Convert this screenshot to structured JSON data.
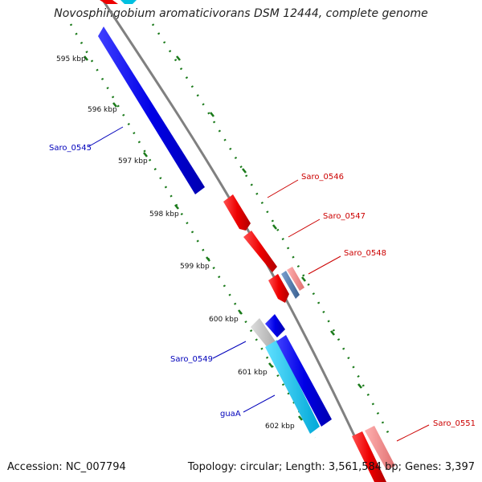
{
  "title": "Novosphingobium aromaticivorans DSM 12444, complete genome",
  "footer": {
    "accession": "Accession: NC_007794",
    "summary": "Topology: circular; Length: 3,561,584 bp; Genes: 3,397"
  },
  "ticks": [
    "595 kbp",
    "596 kbp",
    "597 kbp",
    "598 kbp",
    "599 kbp",
    "600 kbp",
    "601 kbp",
    "602 kbp"
  ],
  "genes": [
    {
      "name": "Saro_0545",
      "strand": "minus",
      "color": "#0000ee"
    },
    {
      "name": "Saro_0546",
      "strand": "plus",
      "color": "#ee0000"
    },
    {
      "name": "Saro_0547",
      "strand": "plus",
      "color": "#ee0000"
    },
    {
      "name": "Saro_0548",
      "strand": "plus",
      "color": "#ee0000"
    },
    {
      "name": "Saro_0549",
      "strand": "minus",
      "color": "#0000ee"
    },
    {
      "name": "guaA",
      "strand": "minus",
      "color": "#0000ee"
    },
    {
      "name": "Saro_0551",
      "strand": "plus",
      "color": "#ee0000"
    }
  ],
  "colors": {
    "plus_label": "#cc0000",
    "minus_label": "#0000bb",
    "backbone": "#808080",
    "ticks": "#1a7a1a"
  }
}
